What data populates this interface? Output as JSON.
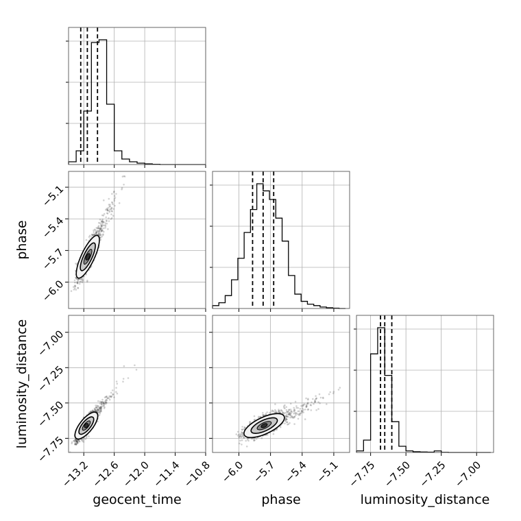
{
  "chart_data": {
    "type": "corner",
    "parameters": [
      "geocent_time",
      "phase",
      "luminosity_distance"
    ],
    "axis_labels": {
      "x": [
        "geocent_time",
        "phase",
        "luminosity_distance"
      ],
      "y": [
        "phase",
        "luminosity_distance"
      ]
    },
    "ranges": {
      "geocent_time": [
        -13.5,
        -10.8
      ],
      "phase": [
        -6.25,
        -4.95
      ],
      "luminosity_distance": [
        -7.85,
        -6.88
      ]
    },
    "ticks": {
      "geocent_time": {
        "values": [
          -13.2,
          -12.6,
          -12.0,
          -11.4,
          -10.8
        ],
        "labels": [
          "−13.2",
          "−12.6",
          "−12.0",
          "−11.4",
          "−10.8"
        ]
      },
      "phase": {
        "values": [
          -6.0,
          -5.7,
          -5.4,
          -5.1
        ],
        "labels": [
          "−6.0",
          "−5.7",
          "−5.4",
          "−5.1"
        ]
      },
      "luminosity_distance": {
        "values": [
          -7.75,
          -7.5,
          -7.25,
          -7.0
        ],
        "labels": [
          "−7.75",
          "−7.50",
          "−7.25",
          "−7.00"
        ]
      }
    },
    "grid": true,
    "diagonal": [
      {
        "param": "geocent_time",
        "bin_edges": [
          -13.5,
          -13.35,
          -13.2,
          -13.05,
          -12.9,
          -12.75,
          -12.6,
          -12.45,
          -12.3,
          -12.15,
          -12.0,
          -11.85,
          -11.7,
          -11.55,
          -11.4,
          -11.25,
          -11.1,
          -10.95,
          -10.8
        ],
        "counts": [
          0.02,
          0.1,
          0.39,
          0.89,
          0.91,
          0.44,
          0.1,
          0.04,
          0.02,
          0.01,
          0.005,
          0.002,
          0,
          0,
          0,
          0,
          0,
          0
        ],
        "quantiles": [
          -13.26,
          -13.13,
          -12.93
        ]
      },
      {
        "param": "phase",
        "bin_edges": [
          -6.25,
          -6.19,
          -6.13,
          -6.07,
          -6.01,
          -5.95,
          -5.89,
          -5.83,
          -5.77,
          -5.71,
          -5.65,
          -5.59,
          -5.53,
          -5.47,
          -5.41,
          -5.35,
          -5.29,
          -5.23,
          -5.17,
          -5.11,
          -5.05,
          -4.99
        ],
        "counts": [
          0.02,
          0.04,
          0.09,
          0.2,
          0.35,
          0.53,
          0.69,
          0.87,
          0.82,
          0.76,
          0.63,
          0.47,
          0.23,
          0.1,
          0.05,
          0.03,
          0.02,
          0.01,
          0.005,
          0.002,
          0
        ],
        "quantiles": [
          -5.87,
          -5.77,
          -5.67
        ]
      },
      {
        "param": "luminosity_distance",
        "bin_edges": [
          -7.85,
          -7.8,
          -7.75,
          -7.7,
          -7.65,
          -7.6,
          -7.55,
          -7.5,
          -7.45,
          -7.4,
          -7.35,
          -7.3,
          -7.25,
          -7.2,
          -7.15,
          -7.1,
          -7.05,
          -7.0,
          -6.95,
          -6.9
        ],
        "counts": [
          0.01,
          0.08,
          0.64,
          0.81,
          0.5,
          0.2,
          0.04,
          0.01,
          0.005,
          0.003,
          0.002,
          0.01,
          0.001,
          0,
          0,
          0,
          0,
          0,
          0
        ],
        "quantiles": [
          -7.68,
          -7.65,
          -7.6
        ]
      }
    ],
    "correlations": [
      {
        "x": "geocent_time",
        "y": "phase",
        "center": [
          -13.12,
          -5.76
        ],
        "slope": 1.03,
        "spread_major": 0.14,
        "spread_minor": 0.04
      },
      {
        "x": "geocent_time",
        "y": "luminosity_distance",
        "center": [
          -13.15,
          -7.66
        ],
        "slope": 0.45,
        "spread_major": 0.11,
        "spread_minor": 0.025
      },
      {
        "x": "phase",
        "y": "luminosity_distance",
        "center": [
          -5.76,
          -7.66
        ],
        "slope": 0.35,
        "spread_major": 0.1,
        "spread_minor": 0.03
      }
    ]
  }
}
